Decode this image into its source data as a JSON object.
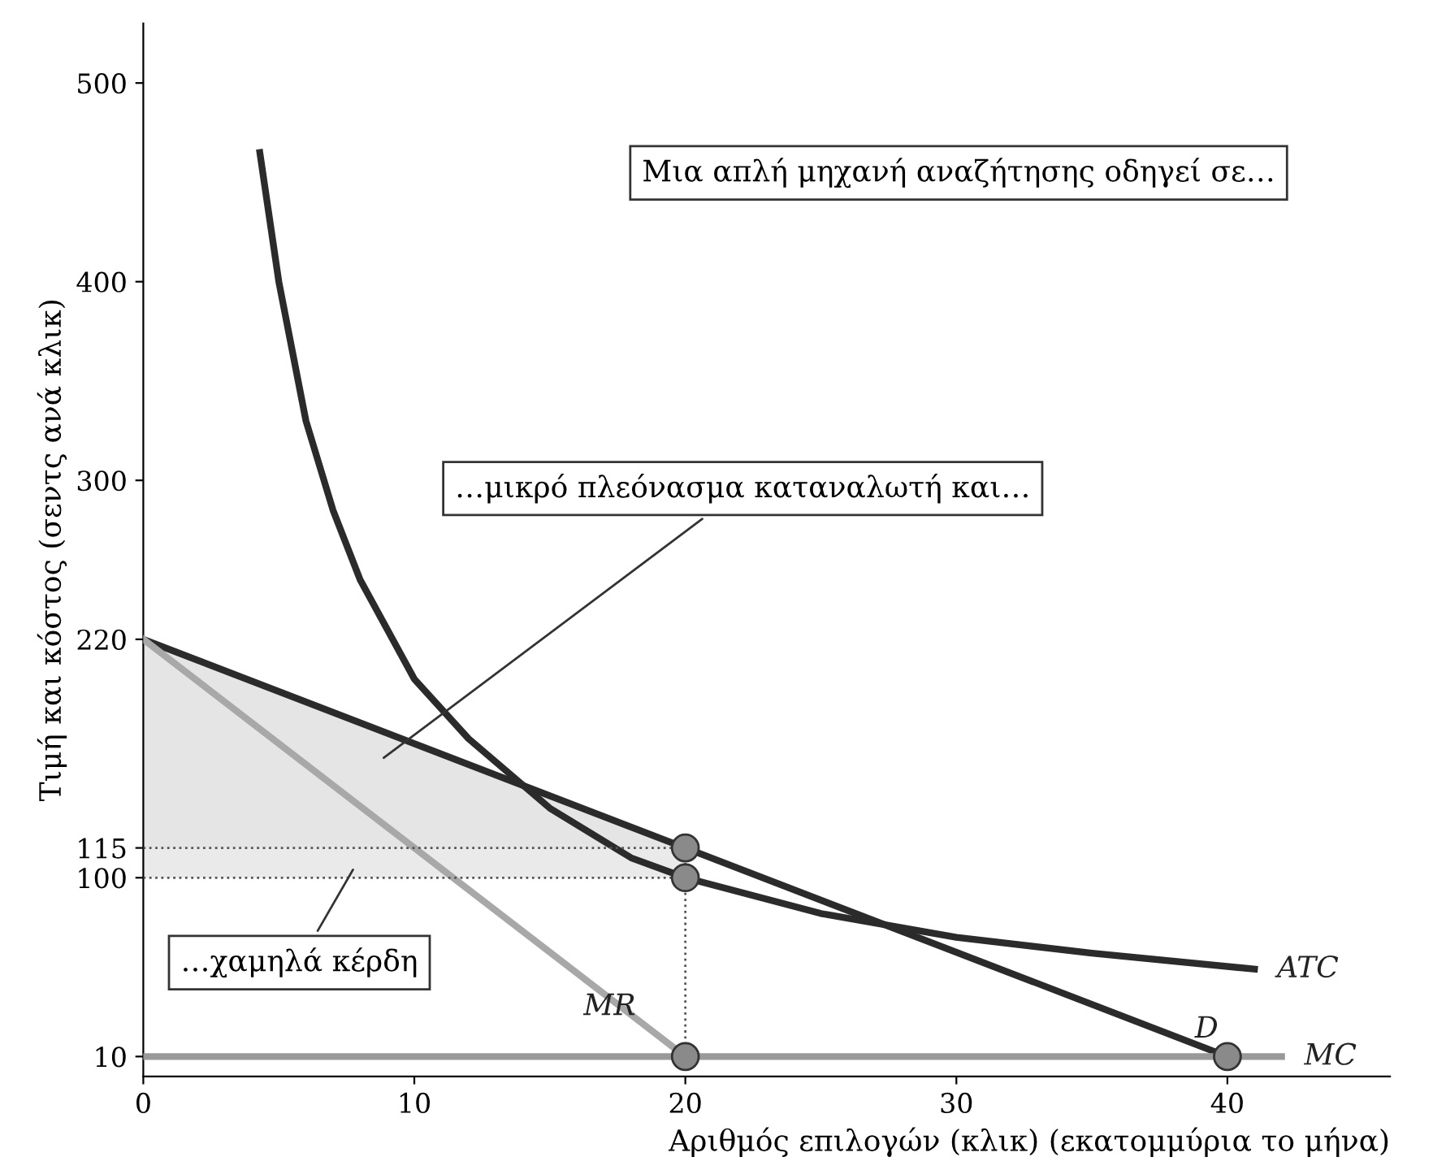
{
  "chart_data": {
    "type": "line",
    "xlabel": "Αριθμός επιλογών (κλικ) (εκατομμύρια το μήνα)",
    "ylabel": "Τιμή και κόστος (σεντς ανά κλικ)",
    "xlim": [
      0,
      46
    ],
    "ylim": [
      0,
      530
    ],
    "xticks": [
      0,
      10,
      20,
      30,
      40
    ],
    "yticks": [
      10,
      100,
      115,
      220,
      300,
      400,
      500
    ],
    "grid": false,
    "marker": "none",
    "series": [
      {
        "name": "D",
        "color": "#2b2b2b",
        "x": [
          0,
          20,
          40
        ],
        "values": [
          220,
          115,
          10
        ],
        "lower": [
          115,
          115,
          null
        ],
        "upper": [
          220,
          115,
          null
        ]
      },
      {
        "name": "MR",
        "color": "#a8a8a8",
        "x": [
          0,
          20
        ],
        "values": [
          220,
          10
        ]
      },
      {
        "name": "ATC",
        "color": "#2b2b2b",
        "x": [
          4.3,
          5,
          6,
          7,
          8,
          10,
          12,
          15,
          18,
          20,
          25,
          30,
          35,
          41
        ],
        "values": [
          465,
          400,
          330,
          285,
          250,
          200,
          170,
          135,
          110,
          100,
          82,
          70,
          62,
          54
        ]
      },
      {
        "name": "MC",
        "color": "#999999",
        "x": [
          0,
          42
        ],
        "values": [
          10,
          10
        ]
      },
      {
        "color": "#555555",
        "x": [
          0,
          20
        ],
        "values": [
          115,
          115
        ],
        "lower": [
          100,
          100
        ],
        "upper": [
          115,
          115
        ],
        "line_style": "dotted"
      },
      {
        "color": "#555555",
        "x": [
          0,
          20
        ],
        "values": [
          100,
          100
        ],
        "line_style": "dotted"
      },
      {
        "color": "#555555",
        "x": [
          20,
          20
        ],
        "values": [
          10,
          115
        ],
        "line_style": "dotted"
      },
      {
        "type": "scatter",
        "color": "#8a8a8a",
        "marker": "circle",
        "x": [
          20,
          20,
          20,
          40
        ],
        "values": [
          115,
          100,
          10,
          10
        ]
      }
    ],
    "annotations": [
      "Μια απλή μηχανή αναζήτησης οδηγεί σε…",
      "…μικρό πλεόνασμα καταναλωτή και…",
      "…χαμηλά κέρδη"
    ]
  }
}
